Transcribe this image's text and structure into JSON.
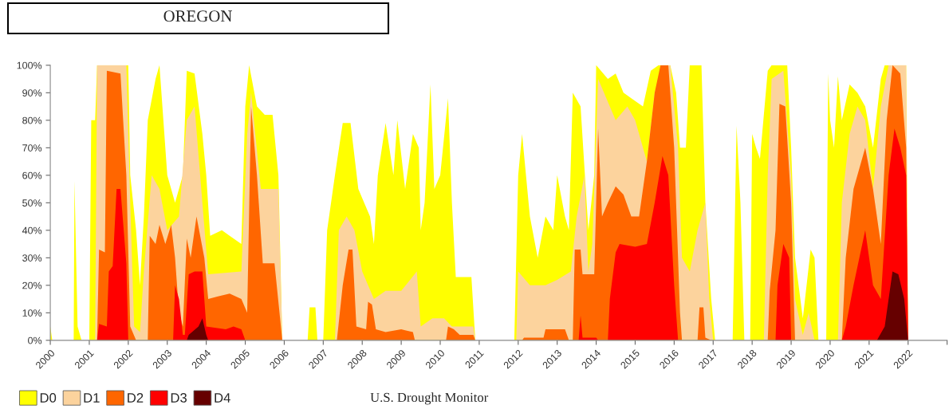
{
  "chart_data": {
    "type": "area",
    "title": "OREGON",
    "xlim": [
      2000,
      2023
    ],
    "xticks": [
      2000,
      2001,
      2002,
      2003,
      2004,
      2005,
      2006,
      2007,
      2008,
      2009,
      2010,
      2011,
      2012,
      2013,
      2014,
      2015,
      2016,
      2017,
      2018,
      2019,
      2020,
      2021,
      2022,
      {
        "value": 2023,
        "label": null
      }
    ],
    "ylim": [
      0,
      100
    ],
    "yticks": [
      {
        "value": 0,
        "label": "0%"
      },
      {
        "value": 10,
        "label": "10%"
      },
      {
        "value": 20,
        "label": "20%"
      },
      {
        "value": 30,
        "label": "30%"
      },
      {
        "value": 40,
        "label": "40%"
      },
      {
        "value": 50,
        "label": "50%"
      },
      {
        "value": 60,
        "label": "60%"
      },
      {
        "value": 70,
        "label": "70%"
      },
      {
        "value": 80,
        "label": "80%"
      },
      {
        "value": 90,
        "label": "90%"
      },
      {
        "value": 100,
        "label": "100%"
      }
    ],
    "grid": false,
    "legend": "bottom left",
    "annotations": [
      "U.S. Drought Monitor"
    ],
    "series": [
      {
        "name": "D0",
        "color": "#ffff00",
        "x": [
          2000.0,
          2000.05,
          2000.6,
          2000.62,
          2000.7,
          2000.8,
          2001.0,
          2001.05,
          2001.15,
          2001.2,
          2002.0,
          2002.05,
          2002.2,
          2002.3,
          2002.4,
          2002.5,
          2002.7,
          2002.8,
          2002.9,
          2003.0,
          2003.2,
          2003.4,
          2003.5,
          2003.7,
          2003.9,
          2004.0,
          2004.1,
          2004.4,
          2004.6,
          2004.9,
          2005.0,
          2005.1,
          2005.3,
          2005.5,
          2005.7,
          2005.85,
          2005.95,
          2006.6,
          2006.65,
          2006.8,
          2006.85,
          2007.0,
          2007.1,
          2007.3,
          2007.5,
          2007.7,
          2007.9,
          2008.2,
          2008.3,
          2008.4,
          2008.6,
          2008.8,
          2008.9,
          2009.1,
          2009.3,
          2009.45,
          2009.5,
          2009.6,
          2009.75,
          2009.85,
          2010.0,
          2010.2,
          2010.3,
          2010.4,
          2010.8,
          2010.9,
          2011.9,
          2012.0,
          2012.1,
          2012.3,
          2012.5,
          2012.7,
          2012.9,
          2013.0,
          2013.2,
          2013.3,
          2013.4,
          2013.6,
          2013.8,
          2013.95,
          2014.0,
          2014.3,
          2014.5,
          2014.7,
          2014.9,
          2015.2,
          2015.4,
          2015.6,
          2015.9,
          2016.05,
          2016.15,
          2016.3,
          2016.4,
          2016.7,
          2016.8,
          2016.95,
          2017.05,
          2017.5,
          2017.6,
          2017.7,
          2017.8,
          2017.95,
          2018.0,
          2018.1,
          2018.2,
          2018.4,
          2018.5,
          2018.9,
          2019.0,
          2019.1,
          2019.3,
          2019.5,
          2019.6,
          2019.7,
          2019.9,
          2019.95,
          2020.0,
          2020.1,
          2020.2,
          2020.3,
          2020.5,
          2020.7,
          2020.9,
          2021.1,
          2021.3,
          2021.4,
          2021.95,
          2022.0
        ],
        "values": [
          5,
          0,
          0,
          58,
          5,
          0,
          0,
          80,
          80,
          100,
          100,
          60,
          40,
          20,
          45,
          80,
          95,
          100,
          80,
          60,
          50,
          60,
          98,
          97,
          75,
          60,
          38,
          40,
          38,
          35,
          85,
          100,
          85,
          82,
          82,
          60,
          0,
          0,
          12,
          12,
          0,
          0,
          40,
          60,
          79,
          79,
          55,
          45,
          35,
          60,
          79,
          60,
          80,
          55,
          75,
          70,
          40,
          50,
          93,
          55,
          60,
          88,
          50,
          23,
          23,
          0,
          0,
          60,
          75,
          45,
          30,
          45,
          40,
          60,
          45,
          40,
          90,
          85,
          40,
          60,
          100,
          95,
          97,
          90,
          88,
          85,
          98,
          100,
          100,
          90,
          70,
          70,
          100,
          100,
          50,
          15,
          0,
          0,
          78,
          50,
          0,
          0,
          75,
          70,
          66,
          98,
          100,
          100,
          70,
          30,
          8,
          33,
          30,
          0,
          0,
          97,
          80,
          70,
          96,
          80,
          93,
          90,
          85,
          70,
          95,
          100,
          100,
          0
        ]
      },
      {
        "name": "D1",
        "color": "#fcd39d",
        "x": [
          2001.15,
          2001.2,
          2001.95,
          2002.05,
          2002.15,
          2002.3,
          2002.4,
          2002.6,
          2002.8,
          2003.0,
          2003.3,
          2003.5,
          2003.7,
          2003.9,
          2004.05,
          2004.9,
          2005.05,
          2005.15,
          2005.4,
          2005.85,
          2005.95,
          2007.3,
          2007.4,
          2007.6,
          2007.8,
          2008.0,
          2008.3,
          2008.6,
          2009.0,
          2009.4,
          2009.5,
          2009.8,
          2010.1,
          2010.3,
          2010.85,
          2010.9,
          2011.95,
          2012.0,
          2012.3,
          2012.7,
          2013.0,
          2013.35,
          2013.5,
          2013.7,
          2013.8,
          2013.9,
          2014.05,
          2014.2,
          2014.5,
          2014.8,
          2015.0,
          2015.3,
          2015.5,
          2015.7,
          2015.9,
          2016.1,
          2016.2,
          2016.4,
          2016.6,
          2016.8,
          2016.9,
          2017.0,
          2018.3,
          2018.4,
          2018.5,
          2018.8,
          2019.0,
          2019.1,
          2019.3,
          2019.45,
          2019.6,
          2020.2,
          2020.3,
          2020.5,
          2020.7,
          2020.9,
          2021.1,
          2021.3,
          2021.5,
          2021.95,
          2022.0
        ],
        "values": [
          0,
          100,
          100,
          50,
          5,
          3,
          25,
          60,
          55,
          40,
          45,
          80,
          85,
          50,
          24,
          25,
          75,
          90,
          55,
          55,
          0,
          0,
          40,
          45,
          40,
          25,
          15,
          18,
          18,
          25,
          5,
          8,
          8,
          5,
          5,
          0,
          0,
          25,
          20,
          20,
          22,
          25,
          45,
          60,
          25,
          35,
          95,
          90,
          80,
          85,
          80,
          65,
          90,
          100,
          100,
          70,
          30,
          25,
          40,
          50,
          15,
          0,
          0,
          60,
          95,
          98,
          60,
          15,
          2,
          10,
          0,
          0,
          50,
          75,
          85,
          80,
          55,
          85,
          100,
          100,
          0
        ]
      },
      {
        "name": "D2",
        "color": "#ff6600",
        "x": [
          2001.2,
          2001.25,
          2001.4,
          2001.45,
          2001.8,
          2001.95,
          2002.05,
          2002.2,
          2002.5,
          2002.55,
          2002.7,
          2002.8,
          2002.95,
          2003.1,
          2003.2,
          2003.3,
          2003.4,
          2003.5,
          2003.6,
          2003.75,
          2003.95,
          2004.05,
          2004.3,
          2004.6,
          2004.9,
          2005.05,
          2005.15,
          2005.3,
          2005.45,
          2005.75,
          2005.95,
          2007.35,
          2007.5,
          2007.65,
          2007.75,
          2007.85,
          2008.1,
          2008.15,
          2008.25,
          2008.35,
          2008.6,
          2009.0,
          2009.3,
          2009.35,
          2010.15,
          2010.2,
          2010.35,
          2010.5,
          2010.85,
          2010.9,
          2012.1,
          2012.15,
          2012.65,
          2012.7,
          2013.2,
          2013.3,
          2013.4,
          2013.45,
          2013.6,
          2013.65,
          2013.95,
          2014.05,
          2014.15,
          2014.3,
          2014.5,
          2014.7,
          2014.9,
          2015.1,
          2015.3,
          2015.5,
          2015.65,
          2015.85,
          2016.0,
          2016.15,
          2016.2,
          2016.6,
          2016.65,
          2016.75,
          2016.8,
          2016.95,
          2018.4,
          2018.45,
          2018.6,
          2018.7,
          2018.85,
          2019.0,
          2019.1,
          2020.3,
          2020.4,
          2020.6,
          2020.9,
          2021.1,
          2021.3,
          2021.45,
          2021.6,
          2021.8,
          2021.95,
          2022.0
        ],
        "values": [
          0,
          33,
          32,
          98,
          97,
          60,
          5,
          0,
          0,
          38,
          35,
          42,
          35,
          42,
          30,
          10,
          5,
          37,
          30,
          45,
          30,
          15,
          16,
          17,
          15,
          10,
          85,
          60,
          28,
          28,
          0,
          0,
          20,
          33,
          33,
          5,
          4,
          14,
          13,
          4,
          3,
          4,
          3,
          0,
          0,
          5,
          4,
          2,
          2,
          0,
          0,
          1,
          1,
          4,
          4,
          0,
          0,
          33,
          33,
          24,
          24,
          77,
          45,
          50,
          56,
          53,
          45,
          45,
          65,
          90,
          100,
          100,
          70,
          10,
          0,
          0,
          12,
          12,
          1,
          0,
          0,
          18,
          40,
          86,
          85,
          50,
          0,
          0,
          30,
          55,
          70,
          55,
          35,
          80,
          100,
          97,
          70,
          0
        ]
      },
      {
        "name": "D3",
        "color": "#ff0000",
        "x": [
          2001.2,
          2001.25,
          2001.45,
          2001.5,
          2001.6,
          2001.7,
          2001.8,
          2001.95,
          2002.0,
          2003.15,
          2003.2,
          2003.3,
          2003.4,
          2003.45,
          2003.55,
          2003.7,
          2003.9,
          2004.0,
          2004.5,
          2004.7,
          2004.9,
          2005.0,
          2013.55,
          2013.6,
          2013.65,
          2014.0,
          2014.05,
          2014.3,
          2014.35,
          2014.5,
          2014.6,
          2015.0,
          2015.3,
          2015.5,
          2015.7,
          2015.85,
          2016.0,
          2016.1,
          2018.6,
          2018.65,
          2018.8,
          2018.95,
          2019.0,
          2020.3,
          2020.4,
          2020.6,
          2020.9,
          2021.1,
          2021.3,
          2021.5,
          2021.65,
          2021.8,
          2021.95,
          2022.0
        ],
        "values": [
          0,
          6,
          5,
          25,
          27,
          55,
          55,
          28,
          0,
          0,
          20,
          15,
          2,
          2,
          24,
          25,
          25,
          5,
          4,
          5,
          4,
          0,
          0,
          9,
          1,
          1,
          0,
          0,
          15,
          32,
          35,
          34,
          35,
          50,
          67,
          60,
          20,
          0,
          0,
          20,
          35,
          30,
          0,
          0,
          5,
          20,
          40,
          20,
          15,
          60,
          77,
          70,
          60,
          0
        ]
      },
      {
        "name": "D4",
        "color": "#660000",
        "x": [
          2003.5,
          2003.55,
          2003.8,
          2003.9,
          2004.0,
          2004.05,
          2021.2,
          2021.4,
          2021.6,
          2021.75,
          2021.9,
          2022.0
        ],
        "values": [
          0,
          2,
          5,
          8,
          2,
          0,
          0,
          5,
          25,
          24,
          15,
          0
        ]
      }
    ]
  }
}
